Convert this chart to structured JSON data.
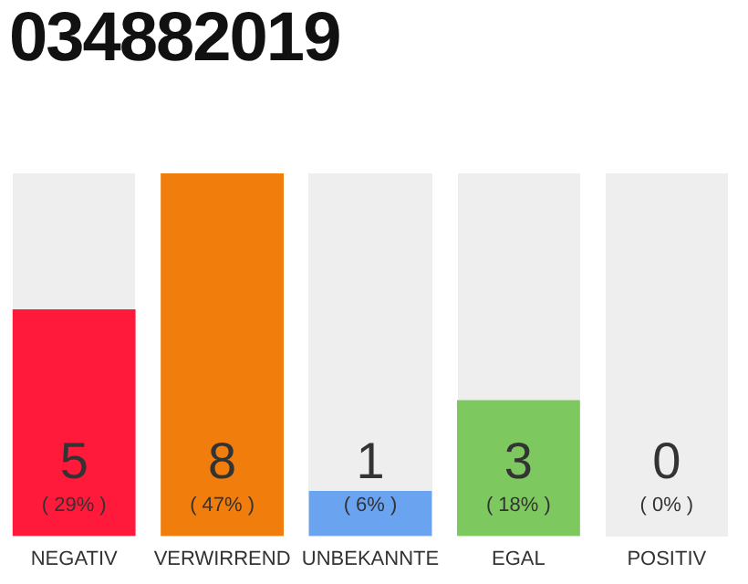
{
  "chart_data": {
    "type": "bar",
    "title": "034882019",
    "categories": [
      "NEGATIV",
      "VERWIRREND",
      "UNBEKANNTE",
      "EGAL",
      "POSITIV"
    ],
    "values": [
      5,
      8,
      1,
      3,
      0
    ],
    "colors": [
      "#ff1a3c",
      "#f07d0c",
      "#6aa3f0",
      "#7ec860",
      "#cccccc"
    ],
    "value_labels": [
      "5\n( 29% )",
      "8\n( 47% )",
      "1\n( 6% )",
      "3\n( 18% )",
      "0\n( 0% )"
    ],
    "ylim": [
      0,
      8
    ],
    "tick_labels": "x",
    "grid": false,
    "legend": false
  }
}
